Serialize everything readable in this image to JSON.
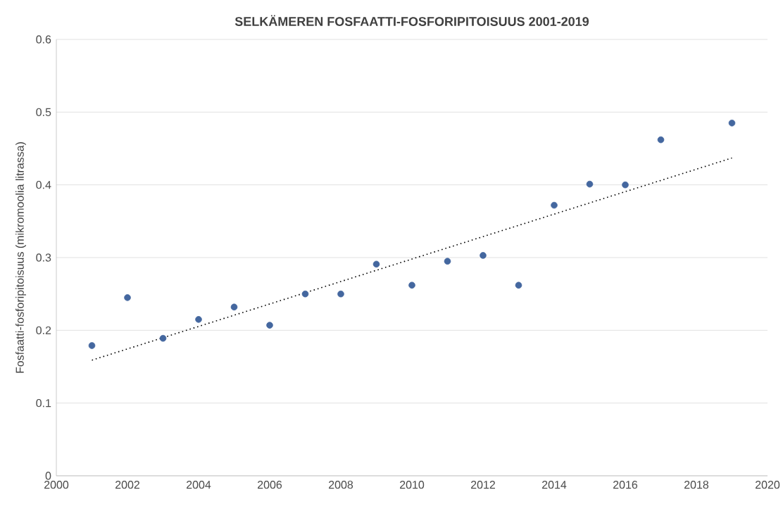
{
  "chart_data": {
    "type": "scatter",
    "title": "SELKÄMEREN FOSFAATTI-FOSFORIPITOISUUS 2001-2019",
    "ylabel": "Fosfaatti-fosforipitoisuus (mikromoolia  litrassa)",
    "xlim": [
      2000,
      2020
    ],
    "xticks": [
      2000,
      2002,
      2004,
      2006,
      2008,
      2010,
      2012,
      2014,
      2016,
      2018,
      2020
    ],
    "ylim": [
      0,
      0.6
    ],
    "yticks": [
      0,
      0.1,
      0.2,
      0.3,
      0.4,
      0.5,
      0.6
    ],
    "grid": "y",
    "series": [
      {
        "marker": "circle",
        "color": "#44679f",
        "x": [
          2001,
          2002,
          2003,
          2004,
          2005,
          2006,
          2007,
          2008,
          2009,
          2010,
          2011,
          2012,
          2013,
          2014,
          2015,
          2016,
          2017,
          2019
        ],
        "values": [
          0.179,
          0.245,
          0.189,
          0.215,
          0.232,
          0.207,
          0.25,
          0.25,
          0.291,
          0.262,
          0.295,
          0.303,
          0.262,
          0.372,
          0.401,
          0.4,
          0.462,
          0.485
        ]
      },
      {
        "type": "line",
        "marker": "none",
        "color": "#000000",
        "line_style": "dotted",
        "x": [
          2001,
          2019
        ],
        "values": [
          0.159,
          0.437
        ]
      }
    ]
  }
}
